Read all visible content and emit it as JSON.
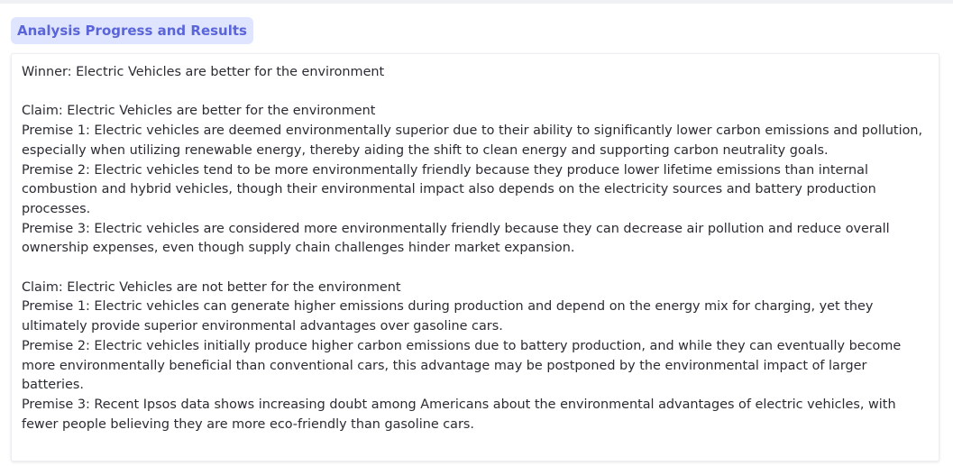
{
  "panel": {
    "label": "Analysis Progress and Results"
  },
  "output": {
    "text": "Winner: Electric Vehicles are better for the environment\n\nClaim: Electric Vehicles are better for the environment\nPremise 1: Electric vehicles are deemed environmentally superior due to their ability to significantly lower carbon emissions and pollution, especially when utilizing renewable energy, thereby aiding the shift to clean energy and supporting carbon neutrality goals.\nPremise 2: Electric vehicles tend to be more environmentally friendly because they produce lower lifetime emissions than internal combustion and hybrid vehicles, though their environmental impact also depends on the electricity sources and battery production processes.\nPremise 3: Electric vehicles are considered more environmentally friendly because they can decrease air pollution and reduce overall ownership expenses, even though supply chain challenges hinder market expansion.\n\nClaim: Electric Vehicles are not better for the environment\nPremise 1: Electric vehicles can generate higher emissions during production and depend on the energy mix for charging, yet they ultimately provide superior environmental advantages over gasoline cars.\nPremise 2: Electric vehicles initially produce higher carbon emissions due to battery production, and while they can eventually become more environmentally beneficial than conventional cars, this advantage may be postponed by the environmental impact of larger batteries.\nPremise 3: Recent Ipsos data shows increasing doubt among Americans about the environmental advantages of electric vehicles, with fewer people believing they are more eco-friendly than gasoline cars."
  }
}
